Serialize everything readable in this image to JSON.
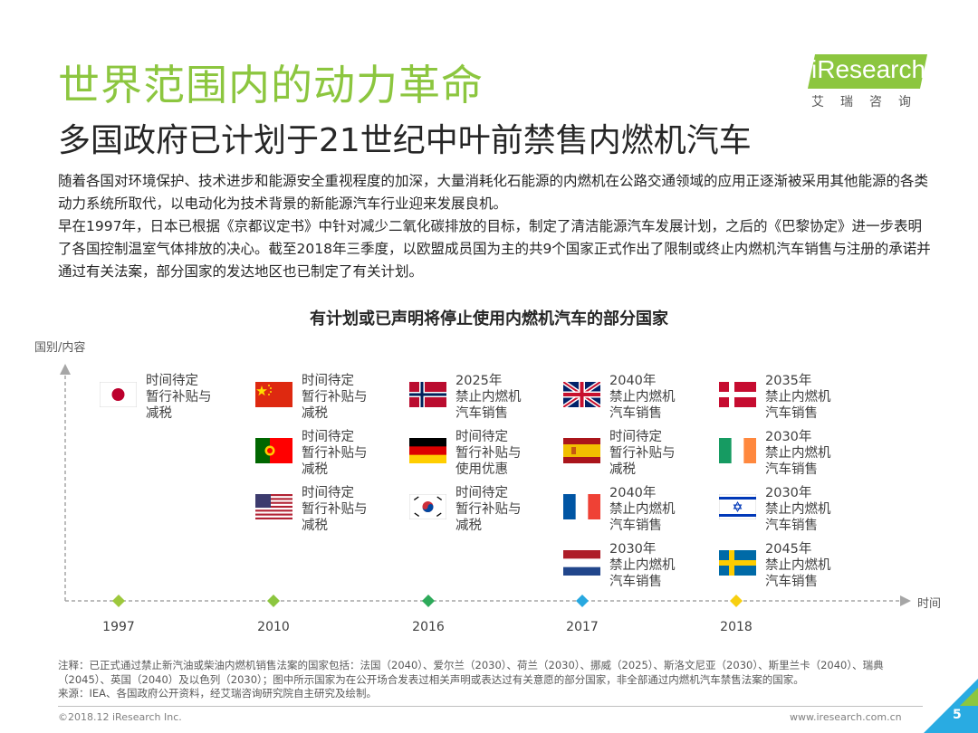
{
  "header": {
    "title": "世界范围内的动力革命",
    "subtitle": "多国政府已计划于21世纪中叶前禁售内燃机汽车",
    "logo_text": "iResearch",
    "logo_cn": "艾瑞咨询"
  },
  "intro": {
    "p1": "随着各国对环境保护、技术进步和能源安全重视程度的加深，大量消耗化石能源的内燃机在公路交通领域的应用正逐渐被采用其他能源的各类动力系统所取代，以电动化为技术背景的新能源汽车行业迎来发展良机。",
    "p2": "早在1997年，日本已根据《京都议定书》中针对减少二氧化碳排放的目标，制定了清洁能源汽车发展计划，之后的《巴黎协定》进一步表明了各国控制温室气体排放的决心。截至2018年三季度，以欧盟成员国为主的共9个国家正式作出了限制或终止内燃机汽车销售与注册的承诺并通过有关法案，部分国家的发达地区也已制定了有关计划。"
  },
  "chart": {
    "title": "有计划或已声明将停止使用内燃机汽车的部分国家",
    "y_axis_label": "国别/内容",
    "x_axis_label": "时间",
    "years": [
      "1997",
      "2010",
      "2016",
      "2017",
      "2018"
    ],
    "marker_colors": [
      "#9dc83c",
      "#8cc63f",
      "#2eaa5a",
      "#28a8e0",
      "#f7cf10"
    ],
    "entries": [
      {
        "flag": "japan-flag",
        "text": "时间待定\n暂行补贴与\n减税"
      },
      {
        "flag": "china-flag",
        "text": "时间待定\n暂行补贴与\n减税"
      },
      {
        "flag": "portugal-flag",
        "text": "时间待定\n暂行补贴与\n减税"
      },
      {
        "flag": "usa-flag",
        "text": "时间待定\n暂行补贴与\n减税"
      },
      {
        "flag": "norway-flag",
        "text": "2025年\n禁止内燃机\n汽车销售"
      },
      {
        "flag": "germany-flag",
        "text": "时间待定\n暂行补贴与\n使用优惠"
      },
      {
        "flag": "korea-flag",
        "text": "时间待定\n暂行补贴与\n减税"
      },
      {
        "flag": "uk-flag",
        "text": "2040年\n禁止内燃机\n汽车销售"
      },
      {
        "flag": "spain-flag",
        "text": "时间待定\n暂行补贴与\n减税"
      },
      {
        "flag": "france-flag",
        "text": "2040年\n禁止内燃机\n汽车销售"
      },
      {
        "flag": "netherlands-flag",
        "text": "2030年\n禁止内燃机\n汽车销售"
      },
      {
        "flag": "denmark-flag",
        "text": "2035年\n禁止内燃机\n汽车销售"
      },
      {
        "flag": "ireland-flag",
        "text": "2030年\n禁止内燃机\n汽车销售"
      },
      {
        "flag": "israel-flag",
        "text": "2030年\n禁止内燃机\n汽车销售"
      },
      {
        "flag": "sweden-flag",
        "text": "2045年\n禁止内燃机\n汽车销售"
      }
    ]
  },
  "notes": {
    "note": "注释：已正式通过禁止新汽油或柴油内燃机销售法案的国家包括：法国（2040）、爱尔兰（2030）、荷兰（2030）、挪威（2025）、斯洛文尼亚（2030）、斯里兰卡（2040）、瑞典（2045）、英国（2040）及以色列（2030）；图中所示国家为在公开场合发表过相关声明或表达过有关意愿的部分国家，非全部通过内燃机汽车禁售法案的国家。",
    "source": "来源：IEA、各国政府公开资料，经艾瑞咨询研究院自主研究及绘制。"
  },
  "footer": {
    "copyright": "©2018.12 iResearch Inc.",
    "site": "www.iresearch.com.cn",
    "page": "5"
  },
  "colors": {
    "accent": "#8cc63f",
    "corner": "#29abe2"
  }
}
